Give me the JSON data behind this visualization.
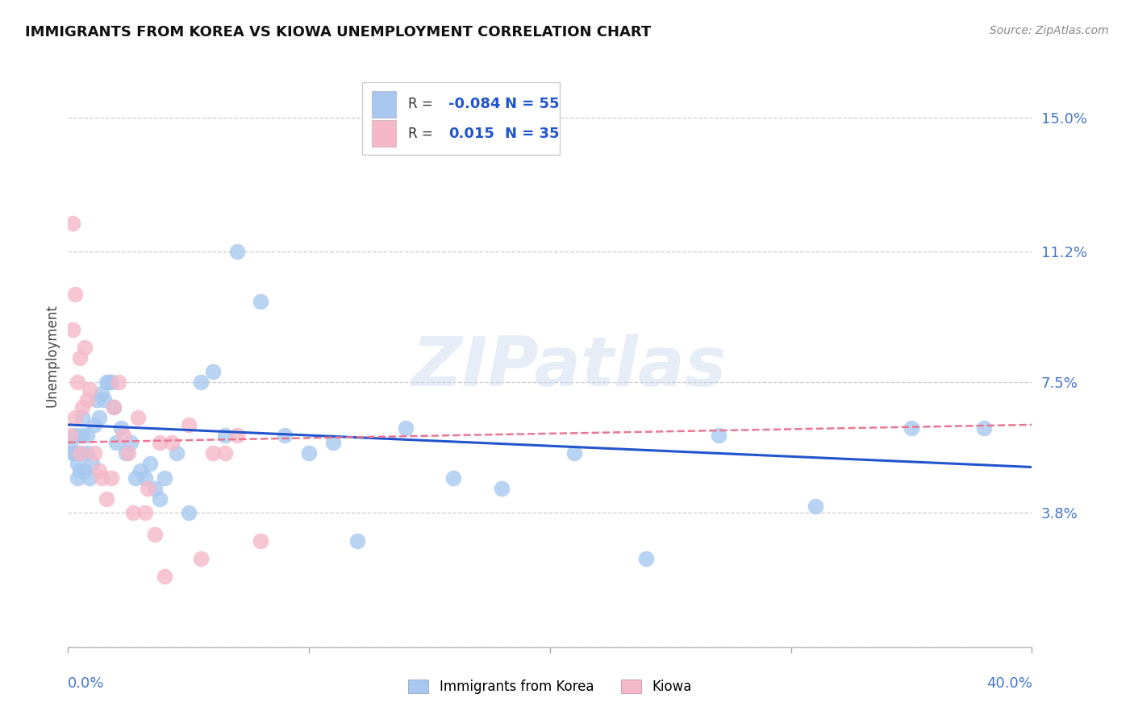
{
  "title": "IMMIGRANTS FROM KOREA VS KIOWA UNEMPLOYMENT CORRELATION CHART",
  "source": "Source: ZipAtlas.com",
  "ylabel": "Unemployment",
  "yticks": [
    0.0,
    0.038,
    0.075,
    0.112,
    0.15
  ],
  "ytick_labels": [
    "",
    "3.8%",
    "7.5%",
    "11.2%",
    "15.0%"
  ],
  "xmin": 0.0,
  "xmax": 0.4,
  "ymin": 0.0,
  "ymax": 0.165,
  "legend_blue_R": "-0.084",
  "legend_blue_N": "55",
  "legend_pink_R": "0.015",
  "legend_pink_N": "35",
  "legend_label_blue": "Immigrants from Korea",
  "legend_label_pink": "Kiowa",
  "watermark": "ZIPatlas",
  "blue_color": "#a8c8f0",
  "pink_color": "#f4b8c8",
  "line_blue_color": "#2255cc",
  "line_pink_color": "#e87890",
  "blue_scatter_x": [
    0.001,
    0.002,
    0.003,
    0.003,
    0.004,
    0.004,
    0.005,
    0.005,
    0.006,
    0.006,
    0.007,
    0.008,
    0.008,
    0.009,
    0.01,
    0.011,
    0.012,
    0.013,
    0.014,
    0.015,
    0.016,
    0.017,
    0.018,
    0.019,
    0.02,
    0.022,
    0.024,
    0.026,
    0.028,
    0.03,
    0.032,
    0.034,
    0.036,
    0.038,
    0.04,
    0.045,
    0.05,
    0.055,
    0.06,
    0.065,
    0.07,
    0.08,
    0.09,
    0.1,
    0.11,
    0.12,
    0.14,
    0.16,
    0.18,
    0.21,
    0.24,
    0.27,
    0.31,
    0.35,
    0.38
  ],
  "blue_scatter_y": [
    0.058,
    0.055,
    0.06,
    0.055,
    0.052,
    0.048,
    0.055,
    0.05,
    0.06,
    0.065,
    0.05,
    0.055,
    0.06,
    0.048,
    0.052,
    0.063,
    0.07,
    0.065,
    0.072,
    0.07,
    0.075,
    0.075,
    0.075,
    0.068,
    0.058,
    0.062,
    0.055,
    0.058,
    0.048,
    0.05,
    0.048,
    0.052,
    0.045,
    0.042,
    0.048,
    0.055,
    0.038,
    0.075,
    0.078,
    0.06,
    0.112,
    0.098,
    0.06,
    0.055,
    0.058,
    0.03,
    0.062,
    0.048,
    0.045,
    0.055,
    0.025,
    0.06,
    0.04,
    0.062,
    0.062
  ],
  "pink_scatter_x": [
    0.001,
    0.002,
    0.002,
    0.003,
    0.003,
    0.004,
    0.005,
    0.005,
    0.006,
    0.007,
    0.008,
    0.009,
    0.011,
    0.013,
    0.014,
    0.016,
    0.018,
    0.019,
    0.021,
    0.023,
    0.025,
    0.027,
    0.029,
    0.032,
    0.033,
    0.036,
    0.038,
    0.04,
    0.043,
    0.05,
    0.055,
    0.06,
    0.065,
    0.07,
    0.08
  ],
  "pink_scatter_y": [
    0.06,
    0.09,
    0.12,
    0.1,
    0.065,
    0.075,
    0.082,
    0.055,
    0.068,
    0.085,
    0.07,
    0.073,
    0.055,
    0.05,
    0.048,
    0.042,
    0.048,
    0.068,
    0.075,
    0.06,
    0.055,
    0.038,
    0.065,
    0.038,
    0.045,
    0.032,
    0.058,
    0.02,
    0.058,
    0.063,
    0.025,
    0.055,
    0.055,
    0.06,
    0.03
  ],
  "blue_line_x0": 0.0,
  "blue_line_x1": 0.4,
  "blue_line_y0": 0.063,
  "blue_line_y1": 0.051,
  "pink_line_x0": 0.0,
  "pink_line_x1": 0.4,
  "pink_line_y0": 0.058,
  "pink_line_y1": 0.063
}
